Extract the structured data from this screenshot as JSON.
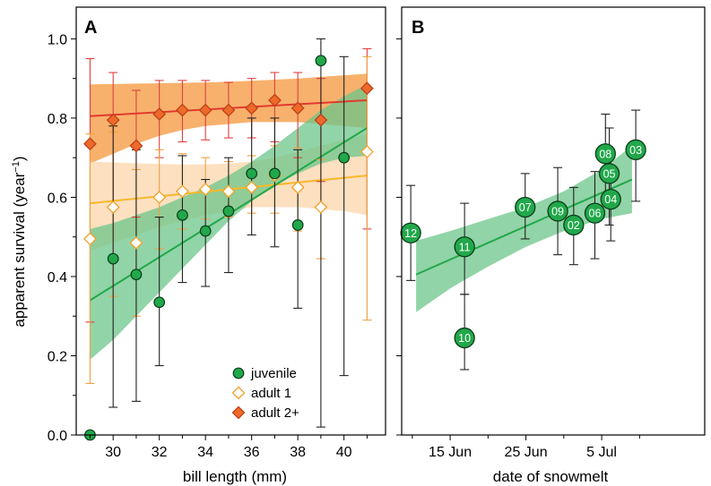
{
  "colors": {
    "juvenile": "#21a84a",
    "juvenile_band": "#6cc58a",
    "adult1": "#f2a028",
    "adult1_line": "#f7b82a",
    "adult1_band": "#fbd8b0",
    "adult2": "#ee6a2a",
    "adult2_line": "#e23a2e",
    "adult2_band": "#f6a95c",
    "err_juvenile": "#222222",
    "err_adult1": "#f0a040",
    "err_adult2": "#e04040"
  },
  "chart_data": [
    {
      "panel": "A",
      "type": "scatter",
      "xlabel": "bill length (mm)",
      "ylabel_main": "apparent survival (year",
      "ylabel_sup": "−1",
      "ylabel_end": ")",
      "xlim": [
        28.4,
        41.8
      ],
      "ylim": [
        0.0,
        1.08
      ],
      "xticks": [
        30,
        32,
        34,
        36,
        38,
        40
      ],
      "xtick_labels": [
        "30",
        "32",
        "34",
        "36",
        "38",
        "40"
      ],
      "yticks": [
        0.0,
        0.2,
        0.4,
        0.6,
        0.8,
        1.0
      ],
      "ytick_labels": [
        "0.0",
        "0.2",
        "0.4",
        "0.6",
        "0.8",
        "1.0"
      ],
      "legend": {
        "placement": "bottom-center",
        "entries": [
          "juvenile",
          "adult 1",
          "adult 2+"
        ]
      },
      "series": [
        {
          "name": "juvenile",
          "x": [
            29,
            30,
            31,
            32,
            33,
            34,
            35,
            36,
            37,
            38,
            39,
            40
          ],
          "y": [
            0.0,
            0.445,
            0.405,
            0.335,
            0.555,
            0.515,
            0.565,
            0.66,
            0.66,
            0.53,
            0.945,
            0.7
          ],
          "lower": [
            0.0,
            0.07,
            0.085,
            0.175,
            0.385,
            0.375,
            0.41,
            0.505,
            0.475,
            0.32,
            0.02,
            0.15
          ],
          "upper": [
            0.0,
            0.78,
            0.72,
            0.55,
            0.705,
            0.645,
            0.7,
            0.8,
            0.8,
            0.72,
            1.0,
            0.955
          ],
          "fit": {
            "x": [
              29,
              41
            ],
            "y": [
              0.34,
              0.775
            ]
          },
          "band_lower": [
            0.19,
            0.24,
            0.3,
            0.36,
            0.42,
            0.48,
            0.54,
            0.59,
            0.63,
            0.66,
            0.685,
            0.7,
            0.705
          ],
          "band_upper": [
            0.52,
            0.535,
            0.555,
            0.575,
            0.6,
            0.625,
            0.655,
            0.69,
            0.73,
            0.775,
            0.82,
            0.855,
            0.885
          ]
        },
        {
          "name": "adult 1",
          "x": [
            29,
            30,
            31,
            32,
            33,
            34,
            35,
            36,
            37,
            38,
            39,
            41
          ],
          "y": [
            0.495,
            0.575,
            0.485,
            0.6,
            0.615,
            0.62,
            0.615,
            0.625,
            0.655,
            0.625,
            0.575,
            0.715
          ],
          "lower": [
            0.13,
            0.35,
            0.3,
            0.47,
            0.52,
            0.545,
            0.55,
            0.56,
            0.56,
            0.515,
            0.445,
            0.29
          ],
          "upper": [
            0.76,
            0.765,
            0.67,
            0.72,
            0.71,
            0.7,
            0.69,
            0.705,
            0.73,
            0.725,
            0.695,
            0.955
          ],
          "fit": {
            "x": [
              29,
              41
            ],
            "y": [
              0.585,
              0.655
            ]
          },
          "band_lower": [
            0.465,
            0.485,
            0.505,
            0.525,
            0.54,
            0.555,
            0.565,
            0.575,
            0.575,
            0.575,
            0.57,
            0.565,
            0.555
          ],
          "band_upper": [
            0.69,
            0.688,
            0.686,
            0.684,
            0.683,
            0.683,
            0.685,
            0.69,
            0.7,
            0.715,
            0.73,
            0.745,
            0.76
          ]
        },
        {
          "name": "adult 2+",
          "x": [
            29,
            30,
            31,
            32,
            33,
            34,
            35,
            36,
            37,
            38,
            39,
            41
          ],
          "y": [
            0.735,
            0.795,
            0.73,
            0.81,
            0.82,
            0.82,
            0.82,
            0.825,
            0.845,
            0.825,
            0.795,
            0.875
          ],
          "lower": [
            0.285,
            0.58,
            0.55,
            0.7,
            0.74,
            0.745,
            0.75,
            0.75,
            0.74,
            0.7,
            0.64,
            0.52
          ],
          "upper": [
            0.95,
            0.915,
            0.87,
            0.895,
            0.895,
            0.895,
            0.89,
            0.9,
            0.915,
            0.915,
            0.9,
            0.975
          ],
          "fit": {
            "x": [
              29,
              41
            ],
            "y": [
              0.805,
              0.845
            ]
          },
          "band_lower": [
            0.685,
            0.71,
            0.735,
            0.755,
            0.77,
            0.78,
            0.785,
            0.79,
            0.79,
            0.79,
            0.785,
            0.78,
            0.775
          ],
          "band_upper": [
            0.885,
            0.886,
            0.887,
            0.888,
            0.889,
            0.89,
            0.892,
            0.894,
            0.897,
            0.9,
            0.904,
            0.908,
            0.912
          ]
        }
      ]
    },
    {
      "panel": "B",
      "type": "scatter",
      "xlabel": "date of snowmelt",
      "xlim": [
        8.6,
        48.6
      ],
      "ylim": [
        0.0,
        1.08
      ],
      "xticks": [
        15,
        25,
        35
      ],
      "xtick_labels": [
        "15 Jun",
        "25 Jun",
        "5 Jul"
      ],
      "yticks": [
        0.0,
        0.2,
        0.4,
        0.6,
        0.8,
        1.0
      ],
      "series": [
        {
          "name": "",
          "labels": [
            "12",
            "11",
            "10",
            "07",
            "09",
            "02",
            "06",
            "08",
            "05",
            "04",
            "03"
          ],
          "x": [
            9.8,
            16.9,
            16.9,
            24.9,
            29.2,
            31.3,
            34.1,
            35.5,
            36.0,
            36.2,
            39.5
          ],
          "y": [
            0.51,
            0.475,
            0.245,
            0.575,
            0.565,
            0.53,
            0.56,
            0.71,
            0.66,
            0.595,
            0.72
          ],
          "lower": [
            0.39,
            0.355,
            0.165,
            0.495,
            0.455,
            0.43,
            0.445,
            0.6,
            0.53,
            0.49,
            0.59
          ],
          "upper": [
            0.63,
            0.585,
            0.355,
            0.66,
            0.675,
            0.625,
            0.665,
            0.81,
            0.775,
            0.7,
            0.82
          ],
          "fit": {
            "x": [
              10.5,
              39.0
            ],
            "y": [
              0.405,
              0.645
            ]
          },
          "band_x": [
            10.5,
            15,
            20,
            25,
            30,
            35,
            39.0
          ],
          "band_lower": [
            0.31,
            0.37,
            0.425,
            0.475,
            0.515,
            0.545,
            0.56
          ],
          "band_upper": [
            0.49,
            0.515,
            0.545,
            0.575,
            0.615,
            0.67,
            0.73
          ]
        }
      ]
    }
  ]
}
